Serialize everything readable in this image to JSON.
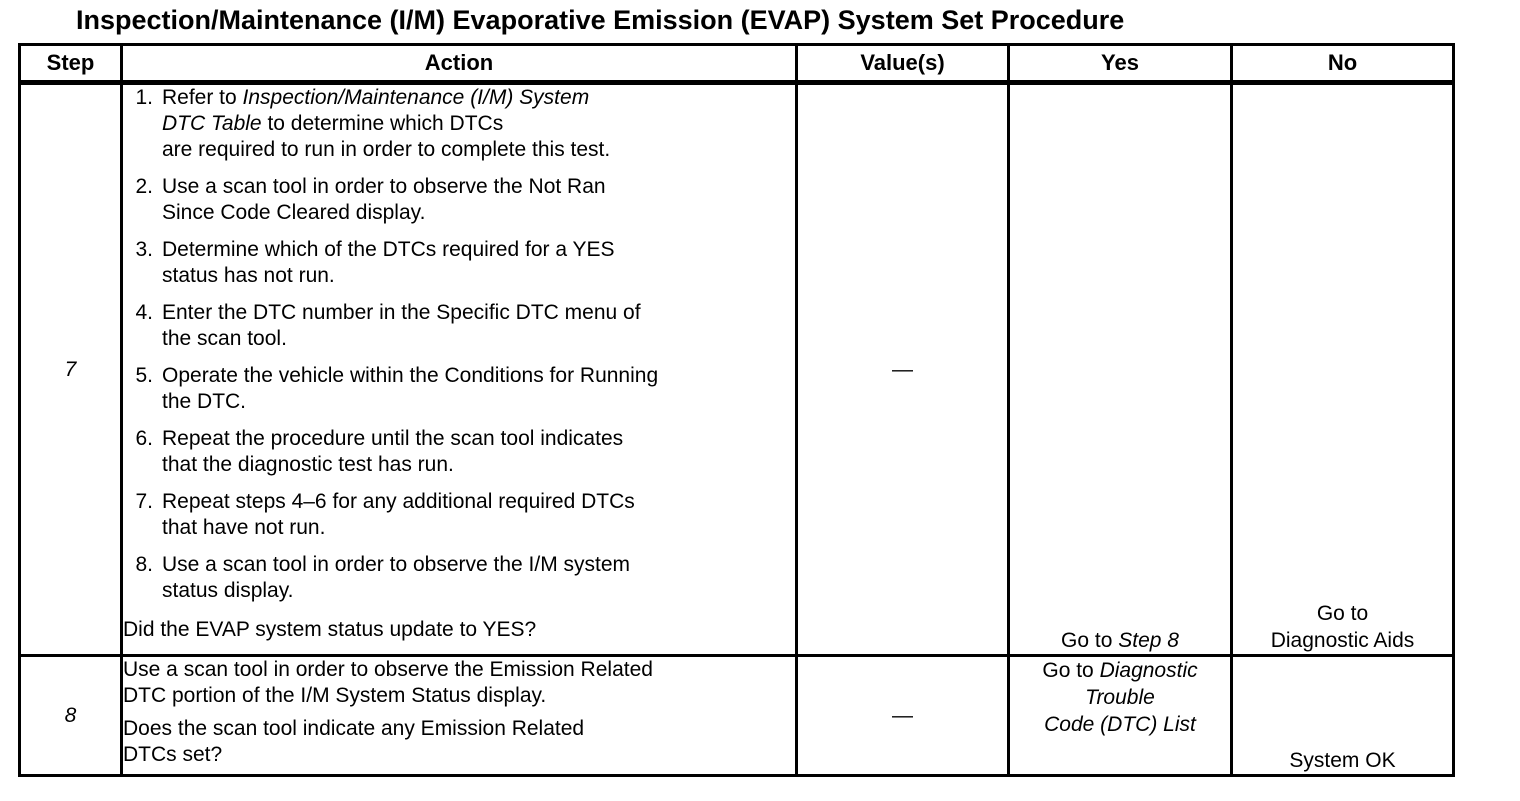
{
  "title": "Inspection/Maintenance (I/M) Evaporative Emission (EVAP) System Set Procedure",
  "table": {
    "headers": {
      "step": "Step",
      "action": "Action",
      "values": "Value(s)",
      "yes": "Yes",
      "no": "No"
    },
    "row7": {
      "step": "7",
      "items": [
        {
          "num": "1.",
          "segments": [
            {
              "t": "Refer to ",
              "i": false
            },
            {
              "t": "Inspection/Maintenance (I/M) System\nDTC Table",
              "i": true
            },
            {
              "t": " to determine which DTCs\nare required to run in order to complete this test.",
              "i": false
            }
          ]
        },
        {
          "num": "2.",
          "segments": [
            {
              "t": "Use a scan tool in order to observe the Not Ran\nSince Code Cleared display.",
              "i": false
            }
          ]
        },
        {
          "num": "3.",
          "segments": [
            {
              "t": "Determine which of the DTCs required for a YES\nstatus has not run.",
              "i": false
            }
          ]
        },
        {
          "num": "4.",
          "segments": [
            {
              "t": "Enter the DTC number in the Specific DTC menu of\nthe scan tool.",
              "i": false
            }
          ]
        },
        {
          "num": "5.",
          "segments": [
            {
              "t": "Operate the vehicle within the Conditions for Running\nthe DTC.",
              "i": false
            }
          ]
        },
        {
          "num": "6.",
          "segments": [
            {
              "t": "Repeat the procedure until the scan tool indicates\nthat the diagnostic test has run.",
              "i": false
            }
          ]
        },
        {
          "num": "7.",
          "segments": [
            {
              "t": "Repeat steps 4–6 for any additional required DTCs\nthat have not run.",
              "i": false
            }
          ]
        },
        {
          "num": "8.",
          "segments": [
            {
              "t": "Use a scan tool in order to observe the I/M system\nstatus display.",
              "i": false
            }
          ]
        }
      ],
      "question": "Did the EVAP system status update to YES?",
      "values": "—",
      "yes_segments": [
        {
          "t": "Go to ",
          "i": false
        },
        {
          "t": "Step 8",
          "i": true
        }
      ],
      "no": "Go to\nDiagnostic Aids"
    },
    "row8": {
      "step": "8",
      "paragraphs": {
        "p1": "Use a scan tool in order to observe the Emission Related\nDTC portion of the I/M System Status display.",
        "p2": "Does the scan tool indicate any Emission Related\nDTCs set?"
      },
      "values": "—",
      "yes_segments": [
        {
          "t": "Go to ",
          "i": false
        },
        {
          "t": "Diagnostic\nTrouble\nCode (DTC) List",
          "i": true
        }
      ],
      "no": "System OK"
    }
  }
}
